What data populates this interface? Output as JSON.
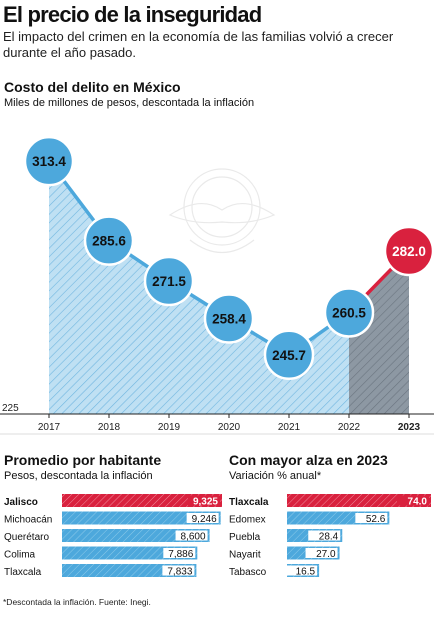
{
  "header": {
    "title": "El precio de la inseguridad",
    "subtitle": "El impacto del crimen en la economía de las familias volvió a crecer durante el año pasado."
  },
  "colors": {
    "blue": "#4da8dc",
    "light_blue_fill": "#bfe0f3",
    "red": "#d9213e",
    "gray_fill": "#8b96a1"
  },
  "footnote": "*Descontada la inflación. Fuente: Inegi.",
  "chart_data": [
    {
      "type": "area",
      "title": "Costo del delito en México",
      "subtitle": "Miles de millones de pesos, descontada la inflación",
      "categories": [
        "2017",
        "2018",
        "2019",
        "2020",
        "2021",
        "2022",
        "2023"
      ],
      "values": [
        313.4,
        285.6,
        271.5,
        258.4,
        245.7,
        260.5,
        282.0
      ],
      "value_labels": [
        "313.4",
        "285.6",
        "271.5",
        "258.4",
        "245.7",
        "260.5",
        "282.0"
      ],
      "ylim": [
        225,
        325
      ],
      "y_base_label": "225",
      "highlight": "2023"
    },
    {
      "type": "bar",
      "orientation": "horizontal",
      "title": "Promedio por habitante",
      "subtitle": "Pesos, descontada la inflación",
      "categories": [
        "Jalisco",
        "Michoacán",
        "Querétaro",
        "Colima",
        "Tlaxcala"
      ],
      "values": [
        9325,
        9246,
        8600,
        7886,
        7833
      ],
      "value_labels": [
        "9,325",
        "9,246",
        "8,600",
        "7,886",
        "7,833"
      ],
      "highlight": "Jalisco"
    },
    {
      "type": "bar",
      "orientation": "horizontal",
      "title": "Con mayor alza en 2023",
      "subtitle": "Variación % anual*",
      "categories": [
        "Tlaxcala",
        "Edomex",
        "Puebla",
        "Nayarit",
        "Tabasco"
      ],
      "values": [
        74.0,
        52.6,
        28.4,
        27.0,
        16.5
      ],
      "value_labels": [
        "74.0",
        "52.6",
        "28.4",
        "27.0",
        "16.5"
      ],
      "highlight": "Tlaxcala"
    }
  ]
}
